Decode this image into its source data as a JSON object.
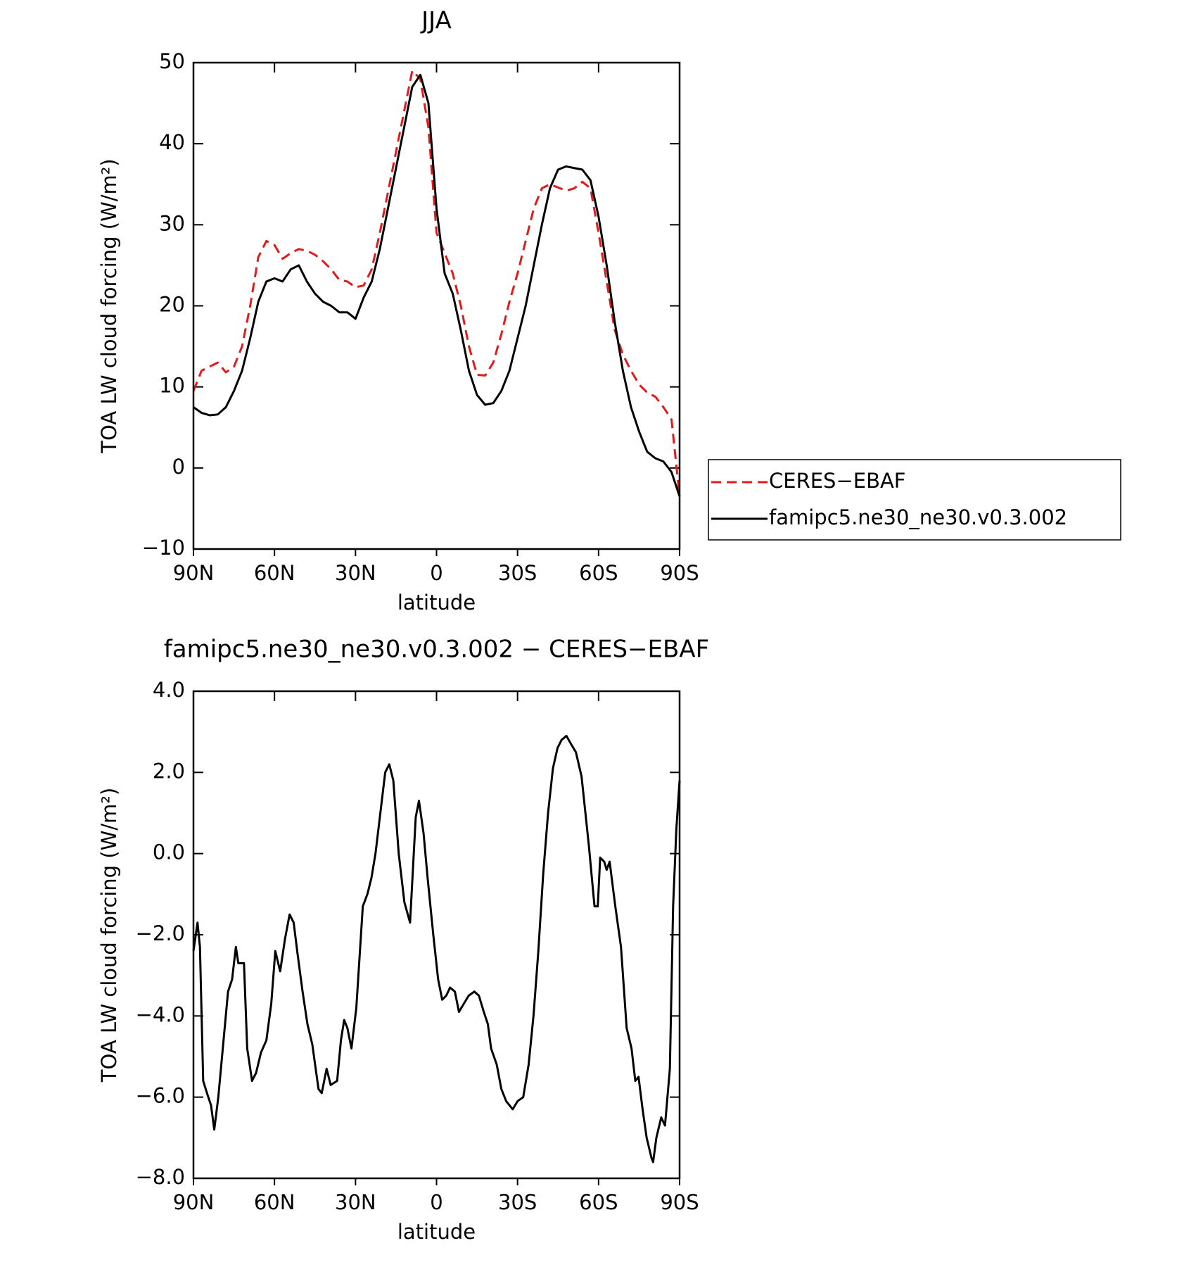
{
  "chart_data": [
    {
      "type": "line",
      "title": "JJA",
      "xlabel": "latitude",
      "ylabel": "TOA LW cloud forcing (W/m²)",
      "x": [
        90,
        87,
        84,
        81,
        78,
        75,
        72,
        69,
        66,
        63,
        60,
        57,
        54,
        51,
        48,
        45,
        42,
        39,
        36,
        33,
        30,
        27,
        24,
        21,
        18,
        15,
        12,
        9,
        6,
        3,
        0,
        -3,
        -6,
        -9,
        -12,
        -15,
        -18,
        -21,
        -24,
        -27,
        -30,
        -33,
        -36,
        -39,
        -42,
        -45,
        -48,
        -51,
        -54,
        -57,
        -60,
        -63,
        -66,
        -69,
        -72,
        -75,
        -78,
        -81,
        -84,
        -87,
        -90
      ],
      "series": [
        {
          "name": "CERES−EBAF",
          "color": "#e31a1c",
          "style": "dashed",
          "values": [
            9.5,
            12,
            12.5,
            13,
            11.8,
            12.5,
            15,
            20,
            26,
            28,
            27.5,
            25.8,
            26.5,
            27,
            26.8,
            26.3,
            25.5,
            24.5,
            23.2,
            23,
            22.3,
            22.5,
            24.5,
            29,
            34,
            39,
            44,
            49,
            48,
            42,
            29,
            26.5,
            24,
            20,
            15,
            11.5,
            11.4,
            13,
            16.5,
            20.5,
            24,
            28,
            32,
            34.5,
            35,
            34.6,
            34.2,
            34.5,
            35.3,
            34.5,
            29,
            23,
            17,
            14,
            12,
            10.3,
            9.3,
            8.8,
            7.5,
            6,
            -3.5
          ]
        },
        {
          "name": "famipc5.ne30_ne30.v0.3.002",
          "color": "#000000",
          "style": "solid",
          "values": [
            7.5,
            6.8,
            6.5,
            6.6,
            7.5,
            9.5,
            12,
            16,
            20.5,
            23,
            23.4,
            23,
            24.5,
            25,
            23,
            21.5,
            20.5,
            20,
            19.2,
            19.2,
            18.4,
            21,
            23,
            27,
            32,
            37,
            42,
            47,
            48.5,
            45,
            32,
            24,
            21.5,
            17,
            12,
            9,
            7.8,
            8,
            9.5,
            12,
            16,
            20,
            25,
            30,
            34.5,
            36.8,
            37.2,
            37,
            36.8,
            35.5,
            31,
            25,
            18,
            12,
            7.5,
            4.5,
            2,
            1.2,
            0.8,
            -0.5,
            -3.5
          ]
        }
      ],
      "xlim": [
        90,
        -90
      ],
      "xticks": [
        {
          "value": 90,
          "label": "90N"
        },
        {
          "value": 60,
          "label": "60N"
        },
        {
          "value": 30,
          "label": "30N"
        },
        0,
        {
          "value": -30,
          "label": "30S"
        },
        {
          "value": -60,
          "label": "60S"
        },
        {
          "value": -90,
          "label": "90S"
        }
      ],
      "ylim": [
        -10,
        50
      ],
      "yticks": [
        {
          "value": -10,
          "label": "−10"
        },
        0,
        10,
        20,
        30,
        40,
        50
      ],
      "legend": "outside-right"
    },
    {
      "type": "line",
      "title": "famipc5.ne30_ne30.v0.3.002 − CERES−EBAF",
      "xlabel": "latitude",
      "ylabel": "TOA LW cloud forcing (W/m²)",
      "x": [
        90,
        88.5,
        87.6,
        86.4,
        85,
        83.5,
        82.3,
        80.8,
        79,
        77.2,
        75.7,
        74.3,
        73.4,
        71.3,
        70.1,
        68.3,
        66.8,
        65,
        63,
        61.2,
        59.7,
        57.9,
        56.1,
        54.4,
        52.9,
        51.4,
        49.6,
        47.8,
        46,
        43.7,
        42.5,
        40.7,
        39.2,
        36.8,
        35.4,
        34.2,
        33,
        31.5,
        29.7,
        27.3,
        25.6,
        24.1,
        22.6,
        20.8,
        19,
        17.5,
        16,
        14,
        11.9,
        9.8,
        7.7,
        6.5,
        4.8,
        3.3,
        1.2,
        -0.6,
        -2.1,
        -3.6,
        -5,
        -6.8,
        -8.3,
        -10.1,
        -11.9,
        -14,
        -15.7,
        -17.5,
        -19,
        -20.2,
        -22.3,
        -24,
        -25.8,
        -28.2,
        -30,
        -32.1,
        -34.1,
        -35.9,
        -37.7,
        -39.5,
        -41.3,
        -43.1,
        -44.8,
        -46.3,
        -48.1,
        -49.8,
        -51.6,
        -53.7,
        -56.4,
        -58.5,
        -59.7,
        -60.6,
        -62.1,
        -63,
        -64.1,
        -66.2,
        -68.3,
        -70.4,
        -72.2,
        -73.6,
        -74.8,
        -76.3,
        -77.8,
        -79.6,
        -80.2,
        -81.4,
        -83.2,
        -84.6,
        -86.4,
        -87.6,
        -88.8,
        -90
      ],
      "series": [
        {
          "color": "#000000",
          "style": "solid",
          "values": [
            -2.4,
            -1.7,
            -2.3,
            -5.6,
            -5.9,
            -6.2,
            -6.8,
            -6,
            -4.7,
            -3.4,
            -3.1,
            -2.3,
            -2.7,
            -2.7,
            -4.8,
            -5.6,
            -5.4,
            -4.9,
            -4.6,
            -3.7,
            -2.4,
            -2.9,
            -2.1,
            -1.5,
            -1.7,
            -2.5,
            -3.4,
            -4.2,
            -4.7,
            -5.8,
            -5.9,
            -5.3,
            -5.7,
            -5.6,
            -4.6,
            -4.1,
            -4.3,
            -4.8,
            -3.8,
            -1.3,
            -1,
            -0.6,
            0,
            1,
            2,
            2.2,
            1.8,
            0,
            -1.2,
            -1.7,
            0.9,
            1.3,
            0.5,
            -0.6,
            -2,
            -3.1,
            -3.6,
            -3.5,
            -3.3,
            -3.4,
            -3.9,
            -3.7,
            -3.5,
            -3.4,
            -3.5,
            -3.9,
            -4.2,
            -4.8,
            -5.2,
            -5.8,
            -6.1,
            -6.3,
            -6.1,
            -6,
            -5.2,
            -4,
            -2.4,
            -0.5,
            1,
            2.1,
            2.6,
            2.8,
            2.9,
            2.7,
            2.5,
            1.9,
            0.2,
            -1.3,
            -1.3,
            -0.1,
            -0.2,
            -0.4,
            -0.2,
            -1.3,
            -2.3,
            -4.3,
            -4.8,
            -5.6,
            -5.5,
            -6.3,
            -7,
            -7.5,
            -7.6,
            -7,
            -6.5,
            -6.7,
            -5.3,
            -1.3,
            0.6,
            1.8
          ]
        }
      ],
      "xlim": [
        90,
        -90
      ],
      "xticks": [
        {
          "value": 90,
          "label": "90N"
        },
        {
          "value": 60,
          "label": "60N"
        },
        {
          "value": 30,
          "label": "30N"
        },
        0,
        {
          "value": -30,
          "label": "30S"
        },
        {
          "value": -60,
          "label": "60S"
        },
        {
          "value": -90,
          "label": "90S"
        }
      ],
      "ylim": [
        -8,
        4
      ],
      "yticks": [
        {
          "value": -8,
          "label": "−8.0"
        },
        {
          "value": -6,
          "label": "−6.0"
        },
        {
          "value": -4,
          "label": "−4.0"
        },
        {
          "value": -2,
          "label": "−2.0"
        },
        {
          "value": 0,
          "label": "0.0"
        },
        {
          "value": 2,
          "label": "2.0"
        },
        {
          "value": 4,
          "label": "4.0"
        }
      ]
    }
  ]
}
